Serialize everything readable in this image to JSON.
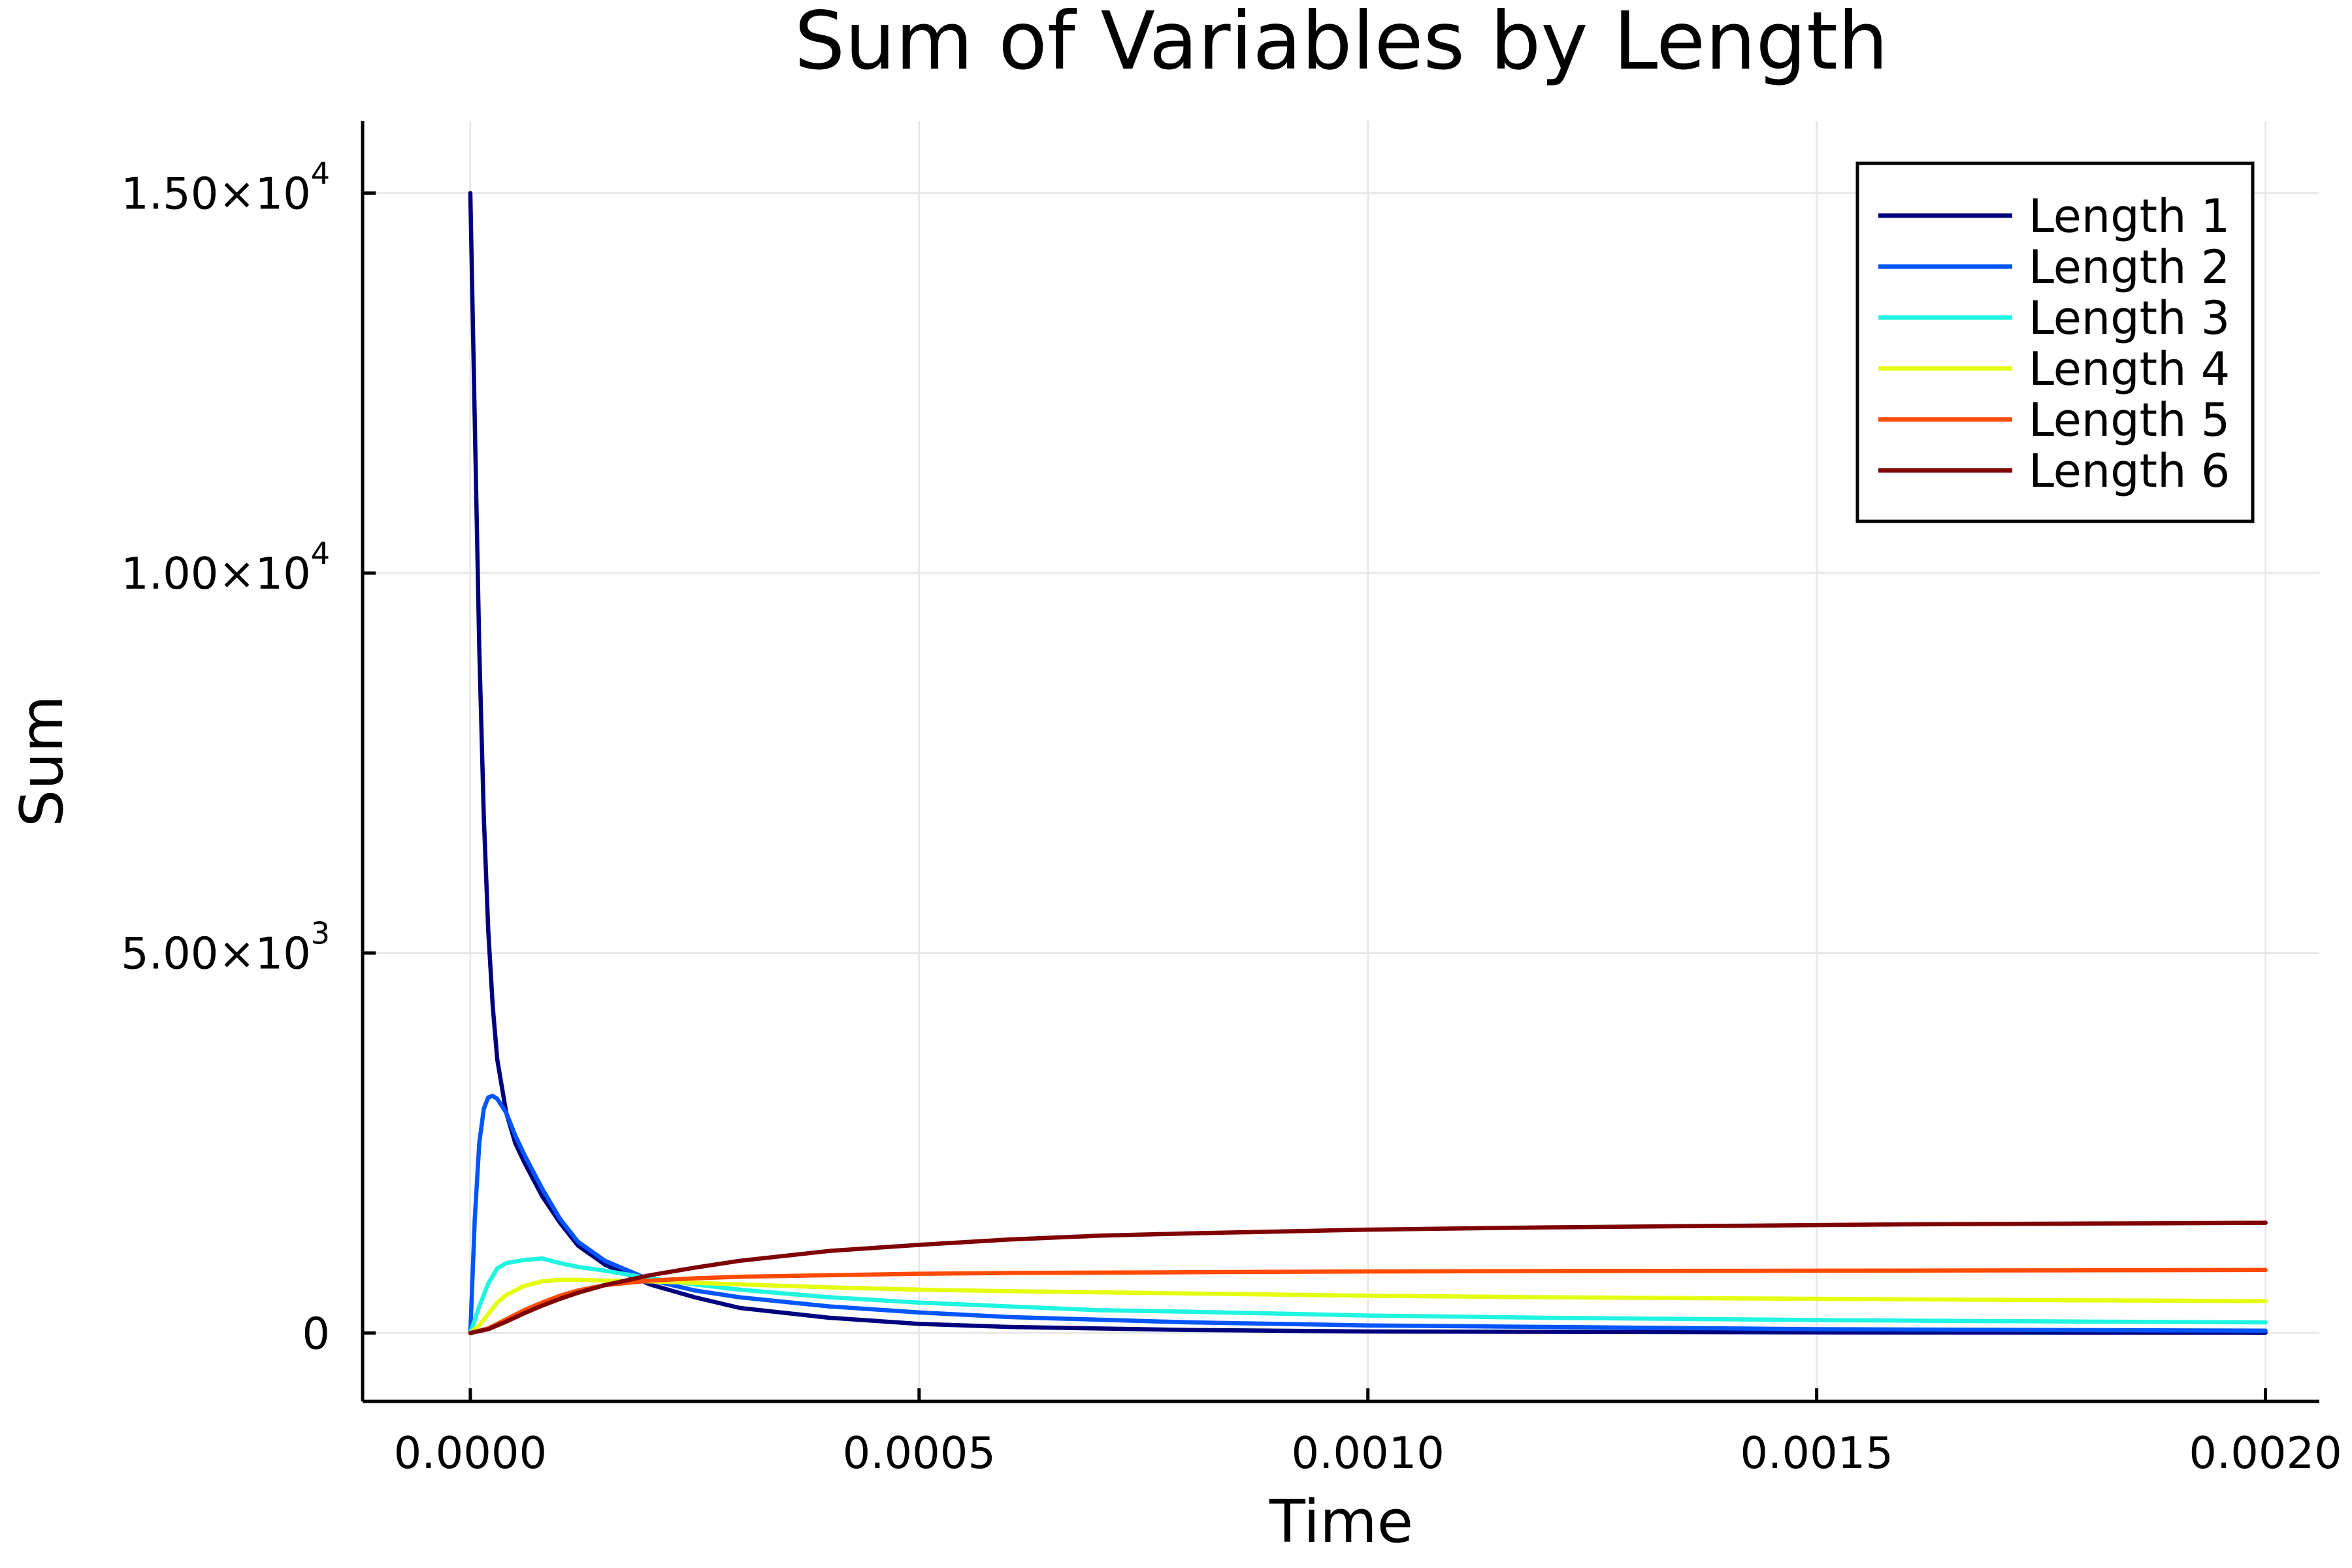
{
  "chart_data": {
    "type": "line",
    "title": "Sum of Variables by Length",
    "xlabel": "Time",
    "ylabel": "Sum",
    "xlim": [
      -0.00012,
      0.00206
    ],
    "ylim": [
      -900,
      15950
    ],
    "grid": true,
    "legend_position": "top-right",
    "x_ticks": [
      {
        "value": 0.0,
        "label": "0.0000"
      },
      {
        "value": 0.0005,
        "label": "0.0005"
      },
      {
        "value": 0.001,
        "label": "0.0010"
      },
      {
        "value": 0.0015,
        "label": "0.0015"
      },
      {
        "value": 0.002,
        "label": "0.0020"
      }
    ],
    "y_ticks": [
      {
        "value": 0,
        "mantissa": "0",
        "exp": ""
      },
      {
        "value": 5000,
        "mantissa": "5.00×10",
        "exp": "3"
      },
      {
        "value": 10000,
        "mantissa": "1.00×10",
        "exp": "4"
      },
      {
        "value": 15000,
        "mantissa": "1.50×10",
        "exp": "4"
      }
    ],
    "series": [
      {
        "name": "Length 1",
        "color": "#00007f",
        "points": [
          [
            0,
            15000
          ],
          [
            5e-06,
            12000
          ],
          [
            1e-05,
            9000
          ],
          [
            1.5e-05,
            6800
          ],
          [
            2e-05,
            5300
          ],
          [
            2.5e-05,
            4300
          ],
          [
            3e-05,
            3600
          ],
          [
            4e-05,
            2900
          ],
          [
            5e-05,
            2500
          ],
          [
            6e-05,
            2250
          ],
          [
            8e-05,
            1800
          ],
          [
            0.0001,
            1450
          ],
          [
            0.00012,
            1150
          ],
          [
            0.00015,
            900
          ],
          [
            0.0002,
            640
          ],
          [
            0.00025,
            470
          ],
          [
            0.0003,
            330
          ],
          [
            0.0004,
            200
          ],
          [
            0.0005,
            120
          ],
          [
            0.0006,
            80
          ],
          [
            0.0008,
            40
          ],
          [
            0.001,
            20
          ],
          [
            0.0015,
            8
          ],
          [
            0.002,
            5
          ]
        ]
      },
      {
        "name": "Length 2",
        "color": "#0055ff",
        "points": [
          [
            0,
            0
          ],
          [
            5e-06,
            1500
          ],
          [
            1e-05,
            2500
          ],
          [
            1.5e-05,
            2950
          ],
          [
            2e-05,
            3100
          ],
          [
            2.5e-05,
            3120
          ],
          [
            3e-05,
            3080
          ],
          [
            4e-05,
            2900
          ],
          [
            5e-05,
            2600
          ],
          [
            6e-05,
            2350
          ],
          [
            8e-05,
            1900
          ],
          [
            0.0001,
            1500
          ],
          [
            0.00012,
            1200
          ],
          [
            0.00015,
            950
          ],
          [
            0.0002,
            700
          ],
          [
            0.00025,
            560
          ],
          [
            0.0003,
            470
          ],
          [
            0.0004,
            350
          ],
          [
            0.0005,
            270
          ],
          [
            0.0006,
            210
          ],
          [
            0.0008,
            140
          ],
          [
            0.001,
            100
          ],
          [
            0.0015,
            50
          ],
          [
            0.002,
            30
          ]
        ]
      },
      {
        "name": "Length 3",
        "color": "#1ff5e0",
        "points": [
          [
            0,
            0
          ],
          [
            1e-05,
            350
          ],
          [
            2e-05,
            650
          ],
          [
            3e-05,
            850
          ],
          [
            4e-05,
            920
          ],
          [
            6e-05,
            960
          ],
          [
            8e-05,
            980
          ],
          [
            0.0001,
            920
          ],
          [
            0.00012,
            870
          ],
          [
            0.00015,
            820
          ],
          [
            0.0002,
            720
          ],
          [
            0.00025,
            640
          ],
          [
            0.0003,
            570
          ],
          [
            0.0004,
            470
          ],
          [
            0.0005,
            400
          ],
          [
            0.0006,
            350
          ],
          [
            0.0007,
            300
          ],
          [
            0.0008,
            280
          ],
          [
            0.001,
            230
          ],
          [
            0.0012,
            200
          ],
          [
            0.0015,
            170
          ],
          [
            0.0018,
            150
          ],
          [
            0.002,
            140
          ]
        ]
      },
      {
        "name": "Length 4",
        "color": "#e5ff10",
        "points": [
          [
            0,
            0
          ],
          [
            1e-05,
            100
          ],
          [
            2e-05,
            250
          ],
          [
            3e-05,
            400
          ],
          [
            4e-05,
            500
          ],
          [
            6e-05,
            620
          ],
          [
            8e-05,
            680
          ],
          [
            0.0001,
            700
          ],
          [
            0.00012,
            700
          ],
          [
            0.00015,
            690
          ],
          [
            0.0002,
            680
          ],
          [
            0.00025,
            660
          ],
          [
            0.0003,
            640
          ],
          [
            0.0004,
            600
          ],
          [
            0.0005,
            570
          ],
          [
            0.0006,
            550
          ],
          [
            0.0008,
            520
          ],
          [
            0.001,
            490
          ],
          [
            0.0012,
            470
          ],
          [
            0.0015,
            450
          ],
          [
            0.0018,
            430
          ],
          [
            0.002,
            420
          ]
        ]
      },
      {
        "name": "Length 5",
        "color": "#ff4a00",
        "points": [
          [
            0,
            0
          ],
          [
            2e-05,
            60
          ],
          [
            4e-05,
            180
          ],
          [
            6e-05,
            300
          ],
          [
            8e-05,
            400
          ],
          [
            0.0001,
            490
          ],
          [
            0.00012,
            560
          ],
          [
            0.00015,
            630
          ],
          [
            0.0002,
            690
          ],
          [
            0.00025,
            720
          ],
          [
            0.0003,
            740
          ],
          [
            0.0004,
            760
          ],
          [
            0.0005,
            780
          ],
          [
            0.0006,
            790
          ],
          [
            0.0008,
            800
          ],
          [
            0.001,
            810
          ],
          [
            0.0012,
            815
          ],
          [
            0.0015,
            820
          ],
          [
            0.0018,
            825
          ],
          [
            0.002,
            830
          ]
        ]
      },
      {
        "name": "Length 6",
        "color": "#7f0000",
        "points": [
          [
            0,
            0
          ],
          [
            2e-05,
            50
          ],
          [
            4e-05,
            150
          ],
          [
            6e-05,
            260
          ],
          [
            8e-05,
            360
          ],
          [
            0.0001,
            450
          ],
          [
            0.00012,
            530
          ],
          [
            0.00015,
            630
          ],
          [
            0.0002,
            760
          ],
          [
            0.00025,
            860
          ],
          [
            0.0003,
            950
          ],
          [
            0.0004,
            1080
          ],
          [
            0.0005,
            1160
          ],
          [
            0.0006,
            1230
          ],
          [
            0.0007,
            1280
          ],
          [
            0.0008,
            1310
          ],
          [
            0.001,
            1360
          ],
          [
            0.0012,
            1390
          ],
          [
            0.0014,
            1410
          ],
          [
            0.0016,
            1430
          ],
          [
            0.0018,
            1440
          ],
          [
            0.002,
            1450
          ]
        ]
      }
    ]
  }
}
